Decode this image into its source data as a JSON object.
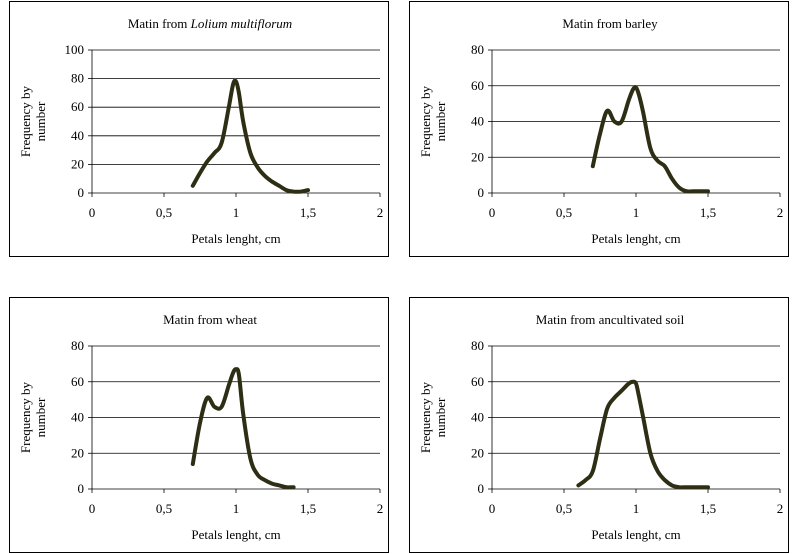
{
  "chart_data": [
    {
      "type": "line",
      "title": "Matin from ",
      "title_italic": "Lolium multiflorum",
      "xlabel": "Petals lenght, cm",
      "ylabel": "Frequency by number",
      "xlim": [
        0,
        2
      ],
      "ylim": [
        0,
        100
      ],
      "xticks": [
        "0",
        "0,5",
        "1",
        "1,5",
        "2"
      ],
      "yticks": [
        "0",
        "20",
        "40",
        "60",
        "80",
        "100"
      ],
      "grid": "horizontal",
      "series": [
        {
          "color": "#2e2e14",
          "x": [
            0.7,
            0.75,
            0.8,
            0.85,
            0.9,
            0.95,
            0.98,
            1.0,
            1.02,
            1.05,
            1.1,
            1.15,
            1.2,
            1.25,
            1.3,
            1.35,
            1.4,
            1.45,
            1.5
          ],
          "y": [
            5,
            14,
            22,
            28,
            35,
            60,
            76,
            78,
            70,
            50,
            28,
            18,
            12,
            8,
            5,
            2,
            1,
            1,
            2
          ]
        }
      ]
    },
    {
      "type": "line",
      "title": "Matin from barley",
      "title_italic": "",
      "xlabel": "Petals lenght, cm",
      "ylabel": "Frequency by number",
      "xlim": [
        0,
        2
      ],
      "ylim": [
        0,
        80
      ],
      "xticks": [
        "0",
        "0,5",
        "1",
        "1,5",
        "2"
      ],
      "yticks": [
        "0",
        "20",
        "40",
        "60",
        "80"
      ],
      "grid": "horizontal",
      "series": [
        {
          "color": "#2e2e14",
          "x": [
            0.7,
            0.75,
            0.8,
            0.85,
            0.9,
            0.95,
            0.98,
            1.0,
            1.02,
            1.05,
            1.1,
            1.15,
            1.2,
            1.25,
            1.3,
            1.35,
            1.4,
            1.45,
            1.5
          ],
          "y": [
            15,
            33,
            46,
            40,
            40,
            52,
            58,
            59,
            55,
            45,
            25,
            18,
            15,
            8,
            3,
            1,
            1,
            1,
            1
          ]
        }
      ]
    },
    {
      "type": "line",
      "title": "Matin from wheat",
      "title_italic": "",
      "xlabel": "Petals lenght, cm",
      "ylabel": "Frequency by number",
      "xlim": [
        0,
        2
      ],
      "ylim": [
        0,
        80
      ],
      "xticks": [
        "0",
        "0,5",
        "1",
        "1,5",
        "2"
      ],
      "yticks": [
        "0",
        "20",
        "40",
        "60",
        "80"
      ],
      "grid": "horizontal",
      "series": [
        {
          "color": "#2e2e14",
          "x": [
            0.7,
            0.75,
            0.8,
            0.85,
            0.9,
            0.95,
            0.98,
            1.0,
            1.02,
            1.05,
            1.1,
            1.15,
            1.2,
            1.25,
            1.3,
            1.35,
            1.4
          ],
          "y": [
            14,
            37,
            51,
            46,
            46,
            58,
            65,
            67,
            64,
            42,
            17,
            8,
            5,
            3,
            2,
            1,
            1
          ]
        }
      ]
    },
    {
      "type": "line",
      "title": "Matin from ancultivated soil",
      "title_italic": "",
      "xlabel": "Petals lenght, cm",
      "ylabel": "Frequency by number",
      "xlim": [
        0,
        2
      ],
      "ylim": [
        0,
        80
      ],
      "xticks": [
        "0",
        "0,5",
        "1",
        "1,5",
        "2"
      ],
      "yticks": [
        "0",
        "20",
        "40",
        "60",
        "80"
      ],
      "grid": "horizontal",
      "series": [
        {
          "color": "#2e2e14",
          "x": [
            0.6,
            0.65,
            0.7,
            0.75,
            0.8,
            0.85,
            0.9,
            0.95,
            0.98,
            1.0,
            1.02,
            1.05,
            1.1,
            1.15,
            1.2,
            1.25,
            1.3,
            1.35,
            1.4,
            1.45,
            1.5
          ],
          "y": [
            2,
            5,
            10,
            28,
            45,
            51,
            55,
            59,
            60,
            59,
            52,
            40,
            20,
            10,
            5,
            2,
            1,
            1,
            1,
            1,
            1
          ]
        }
      ]
    }
  ]
}
